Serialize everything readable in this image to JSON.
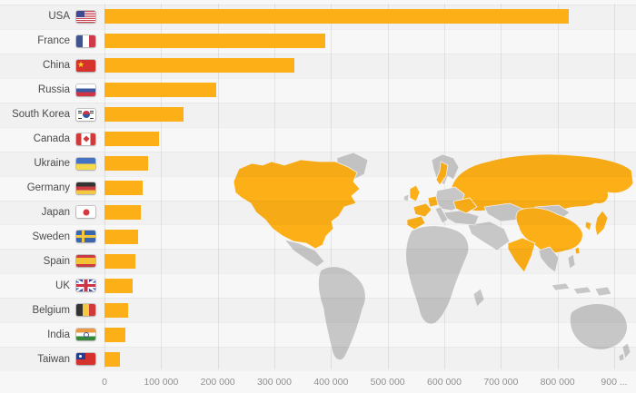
{
  "colors": {
    "background": "#f7f7f7",
    "bar": "#fcaf17",
    "grid": "#e4e4e4",
    "label": "#4a4a4a",
    "tick": "#8f8f8f"
  },
  "chart_data": {
    "type": "bar",
    "orientation": "horizontal",
    "title": "",
    "xlabel": "",
    "ylabel": "",
    "grid": true,
    "legend": false,
    "categories": [
      "USA",
      "France",
      "China",
      "Russia",
      "South Korea",
      "Canada",
      "Ukraine",
      "Germany",
      "Japan",
      "Sweden",
      "Spain",
      "UK",
      "Belgium",
      "India",
      "Taiwan"
    ],
    "values": [
      820000,
      390000,
      335000,
      197000,
      140000,
      96000,
      77000,
      68000,
      64000,
      60000,
      54000,
      49000,
      41000,
      37000,
      27000
    ],
    "flag_codes": [
      "us",
      "fr",
      "cn",
      "ru",
      "kr",
      "ca",
      "ua",
      "de",
      "jp",
      "se",
      "es",
      "uk",
      "be",
      "in",
      "tw"
    ],
    "x_ticks": [
      "0",
      "100 000",
      "200 000",
      "300 000",
      "400 000",
      "500 000",
      "600 000",
      "700 000",
      "800 000",
      "900 ..."
    ],
    "xlim": [
      0,
      900000
    ]
  },
  "map": {
    "land_color": "#c7c7c7",
    "highlight_color": "#fcaf17",
    "regions": [
      {
        "name": "greenland",
        "highlighted": false
      },
      {
        "name": "north-america",
        "highlighted": true
      },
      {
        "name": "mexico",
        "highlighted": false
      },
      {
        "name": "south-america",
        "highlighted": false
      },
      {
        "name": "africa",
        "highlighted": false
      },
      {
        "name": "madagascar",
        "highlighted": false
      },
      {
        "name": "russia",
        "highlighted": true
      },
      {
        "name": "middle-east",
        "highlighted": false
      },
      {
        "name": "kazakhstan",
        "highlighted": false
      },
      {
        "name": "mongolia",
        "highlighted": false
      },
      {
        "name": "scandinavia",
        "highlighted": false
      },
      {
        "name": "sweden",
        "highlighted": true
      },
      {
        "name": "east-europe",
        "highlighted": false
      },
      {
        "name": "balkans-turkey",
        "highlighted": false
      },
      {
        "name": "uk",
        "highlighted": true
      },
      {
        "name": "ireland",
        "highlighted": false
      },
      {
        "name": "france",
        "highlighted": true
      },
      {
        "name": "germany",
        "highlighted": true
      },
      {
        "name": "italy",
        "highlighted": false
      },
      {
        "name": "spain",
        "highlighted": true
      },
      {
        "name": "ukraine",
        "highlighted": true
      },
      {
        "name": "china",
        "highlighted": true
      },
      {
        "name": "india",
        "highlighted": true
      },
      {
        "name": "se-asia",
        "highlighted": false
      },
      {
        "name": "indonesia",
        "highlighted": false
      },
      {
        "name": "philippines",
        "highlighted": false
      },
      {
        "name": "japan",
        "highlighted": true
      },
      {
        "name": "south-korea",
        "highlighted": true
      },
      {
        "name": "taiwan",
        "highlighted": true
      },
      {
        "name": "australia",
        "highlighted": false
      },
      {
        "name": "new-zealand",
        "highlighted": false
      }
    ]
  }
}
